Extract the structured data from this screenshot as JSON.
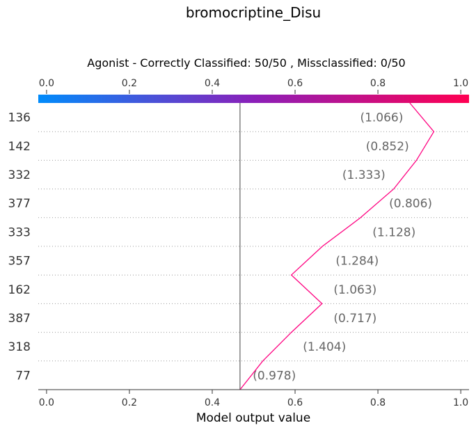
{
  "chart_data": {
    "type": "line",
    "title": "bromocriptine_Disu",
    "subtitle": "Agonist - Correctly Classified: 50/50 , Missclassified: 0/50",
    "xlabel": "Model output value",
    "xlim": [
      -0.02,
      1.02
    ],
    "x_ticks": [
      "0.0",
      "0.2",
      "0.4",
      "0.6",
      "0.8",
      "1.0"
    ],
    "base_value": 0.467,
    "colorbar": {
      "from_color": "#008bfb",
      "mid_color": "#8b1fb9",
      "to_color": "#ff0052"
    },
    "line_color": "#ff0080",
    "features": [
      {
        "label": "136",
        "annotation": "(1.066)"
      },
      {
        "label": "142",
        "annotation": "(0.852)"
      },
      {
        "label": "332",
        "annotation": "(1.333)"
      },
      {
        "label": "377",
        "annotation": "(0.806)"
      },
      {
        "label": "333",
        "annotation": "(1.128)"
      },
      {
        "label": "357",
        "annotation": "(1.284)"
      },
      {
        "label": "162",
        "annotation": "(1.063)"
      },
      {
        "label": "387",
        "annotation": "(0.717)"
      },
      {
        "label": "318",
        "annotation": "(1.404)"
      },
      {
        "label": "77",
        "annotation": "(0.978)"
      }
    ],
    "path_values": [
      0.877,
      0.935,
      0.893,
      0.838,
      0.758,
      0.666,
      0.591,
      0.665,
      0.591,
      0.522,
      0.467
    ],
    "annotation_x": [
      0.809,
      0.823,
      0.766,
      0.879,
      0.839,
      0.75,
      0.745,
      0.745,
      0.671,
      0.55
    ]
  }
}
